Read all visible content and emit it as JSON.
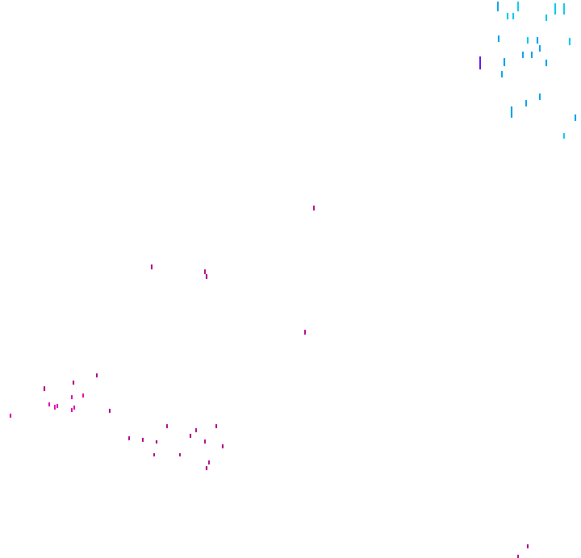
{
  "background": "#ffffff",
  "colors": {
    "cyan": "#00c8f0",
    "blue": "#00a0f0",
    "violet": "#5a10f0",
    "magenta": "#e000b0",
    "dark_magenta": "#b0008a"
  }
}
